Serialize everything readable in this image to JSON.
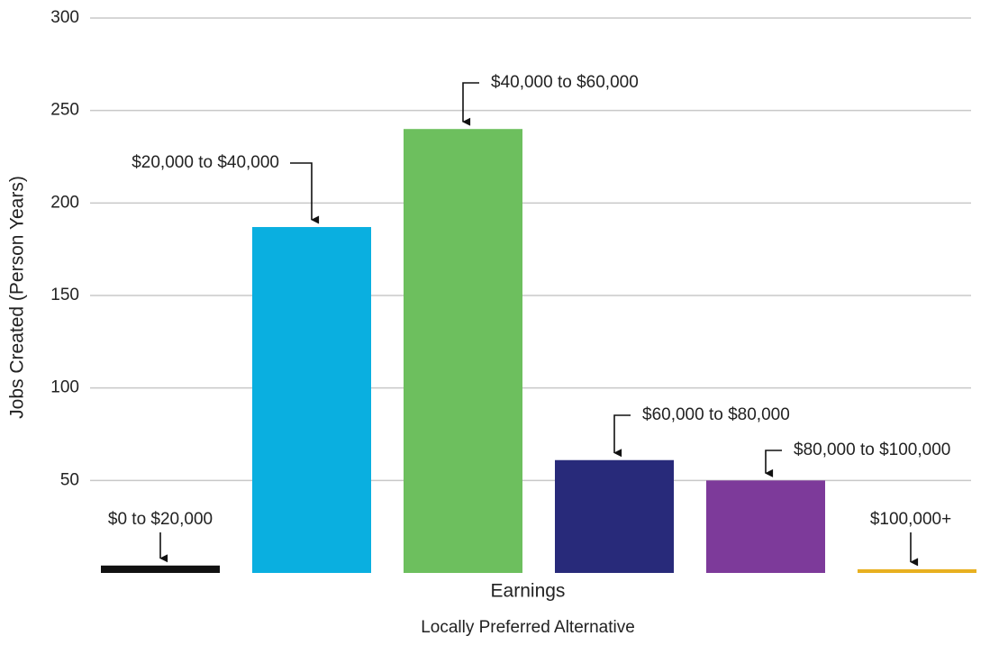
{
  "chart_data": {
    "type": "bar",
    "subtitle": "Locally Preferred Alternative",
    "x_label": "Earnings",
    "y_label": "Jobs Created (Person Years)",
    "categories": [
      "$0 to $20,000",
      "$20,000 to $40,000",
      "$40,000 to $60,000",
      "$60,000 to $80,000",
      "$80,000 to $100,000",
      "$100,000+"
    ],
    "values": [
      4,
      187,
      240,
      61,
      50,
      2
    ],
    "colors": [
      "#111111",
      "#0aafe0",
      "#6dbf5e",
      "#282a7a",
      "#7d3a9a",
      "#e8b020"
    ],
    "ylim": [
      0,
      300
    ],
    "yticks": [
      50,
      100,
      150,
      200,
      250,
      300
    ],
    "grid": true
  }
}
